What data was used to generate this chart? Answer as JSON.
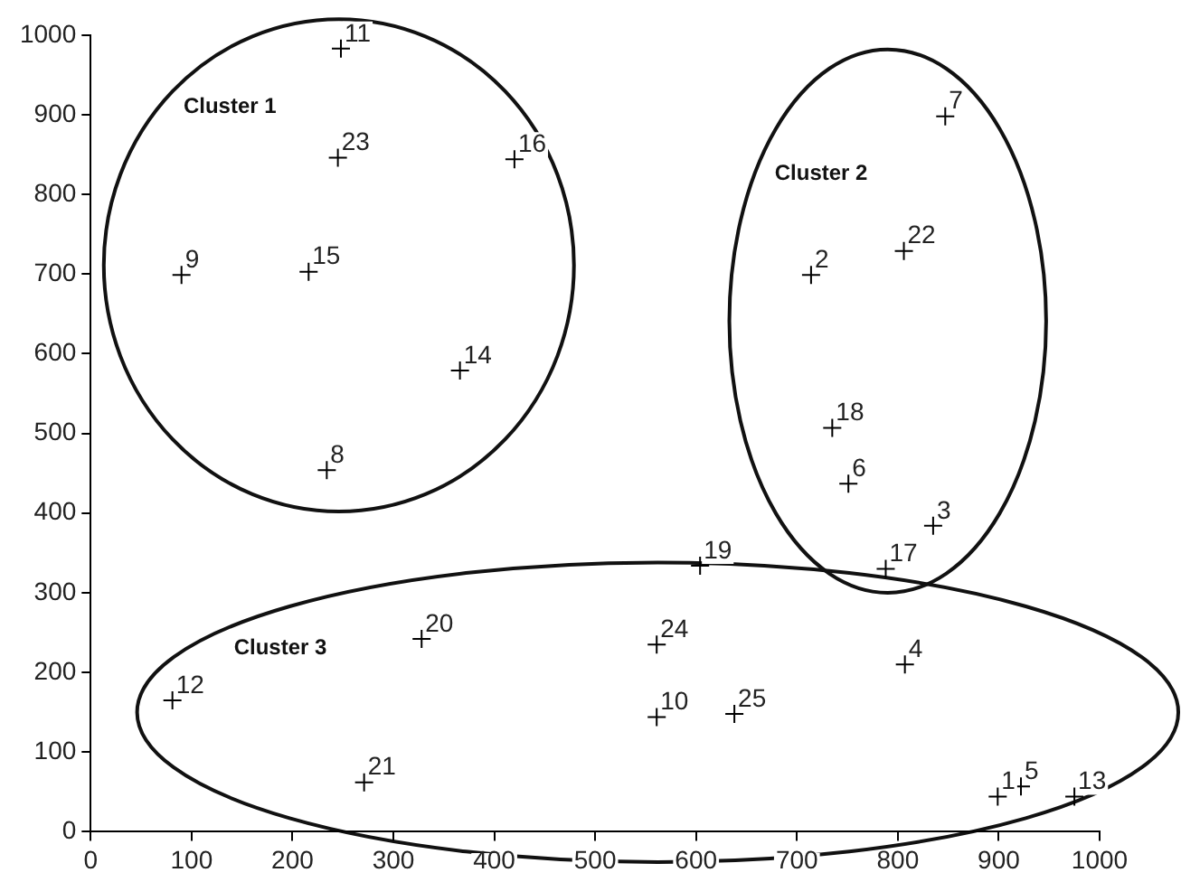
{
  "chart_data": {
    "type": "scatter",
    "x": [
      899,
      714,
      835,
      807,
      922,
      751,
      847,
      234,
      90,
      561,
      248,
      81,
      975,
      366,
      216,
      420,
      788,
      735,
      604,
      328,
      271,
      806,
      245,
      561,
      638
    ],
    "values": [
      44,
      699,
      384,
      210,
      57,
      437,
      898,
      454,
      699,
      144,
      983,
      165,
      44,
      579,
      703,
      844,
      330,
      507,
      334,
      242,
      62,
      729,
      846,
      235,
      148
    ],
    "color": "#000000",
    "marker": "cross",
    "xlim": [
      0,
      1000
    ],
    "ylim": [
      0,
      1000
    ],
    "xticks": [
      0,
      100,
      200,
      300,
      400,
      500,
      600,
      700,
      800,
      900,
      1000
    ],
    "yticks": [
      0,
      100,
      200,
      300,
      400,
      500,
      600,
      700,
      800,
      900,
      1000
    ],
    "annotations": [
      "Cluster 1",
      "Cluster 2",
      "Cluster 3",
      {
        "text": "1",
        "x": 899,
        "y": 44
      },
      {
        "text": "2",
        "x": 714,
        "y": 699
      },
      {
        "text": "3",
        "x": 835,
        "y": 384
      },
      {
        "text": "4",
        "x": 807,
        "y": 210
      },
      {
        "text": "5",
        "x": 922,
        "y": 57
      },
      {
        "text": "6",
        "x": 751,
        "y": 437
      },
      {
        "text": "7",
        "x": 847,
        "y": 898
      },
      {
        "text": "8",
        "x": 234,
        "y": 454
      },
      {
        "text": "9",
        "x": 90,
        "y": 699
      },
      {
        "text": "10",
        "x": 561,
        "y": 144
      },
      {
        "text": "11",
        "x": 248,
        "y": 983
      },
      {
        "text": "12",
        "x": 81,
        "y": 165
      },
      {
        "text": "13",
        "x": 975,
        "y": 44
      },
      {
        "text": "14",
        "x": 366,
        "y": 579
      },
      {
        "text": "15",
        "x": 216,
        "y": 703
      },
      {
        "text": "16",
        "x": 420,
        "y": 844
      },
      {
        "text": "17",
        "x": 788,
        "y": 330
      },
      {
        "text": "18",
        "x": 735,
        "y": 507
      },
      {
        "text": "19",
        "x": 604,
        "y": 334
      },
      {
        "text": "20",
        "x": 328,
        "y": 242
      },
      {
        "text": "21",
        "x": 271,
        "y": 62
      },
      {
        "text": "22",
        "x": 806,
        "y": 729
      },
      {
        "text": "23",
        "x": 245,
        "y": 846
      },
      {
        "text": "24",
        "x": 561,
        "y": 235
      },
      {
        "text": "25",
        "x": 638,
        "y": 148
      }
    ]
  }
}
